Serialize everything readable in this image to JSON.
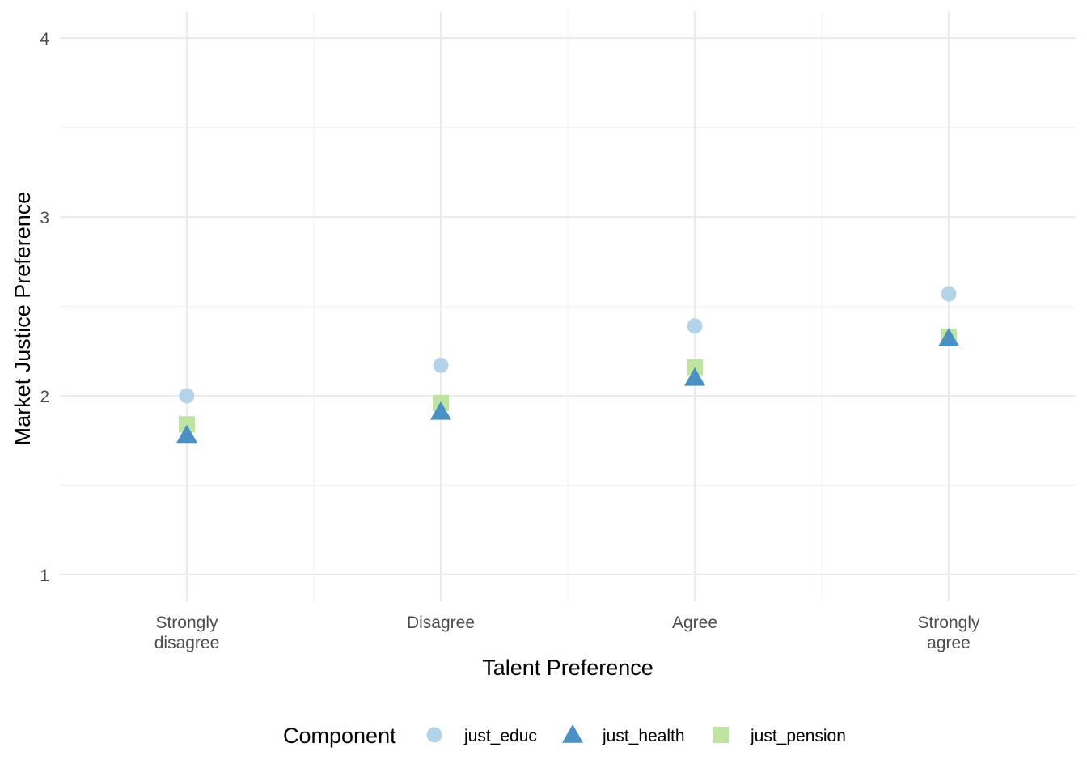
{
  "chart_data": {
    "type": "scatter",
    "categories": [
      [
        "Strongly",
        "disagree"
      ],
      [
        "Disagree"
      ],
      [
        "Agree"
      ],
      [
        "Strongly",
        "agree"
      ]
    ],
    "xlabel": "Talent Preference",
    "ylabel": "Market Justice Preference",
    "ylim": [
      0.85,
      4.15
    ],
    "yticks": [
      1,
      2,
      3,
      4
    ],
    "grid": true,
    "legend": {
      "title": "Component",
      "position": "bottom"
    },
    "series": [
      {
        "name": "just_educ",
        "shape": "circle",
        "color": "#b3d4e8",
        "values": [
          2.0,
          2.17,
          2.39,
          2.57
        ]
      },
      {
        "name": "just_health",
        "shape": "triangle",
        "color": "#4a90c2",
        "values": [
          1.78,
          1.91,
          2.1,
          2.32
        ]
      },
      {
        "name": "just_pension",
        "shape": "square",
        "color": "#bfe3a1",
        "values": [
          1.84,
          1.96,
          2.16,
          2.33
        ]
      }
    ]
  }
}
